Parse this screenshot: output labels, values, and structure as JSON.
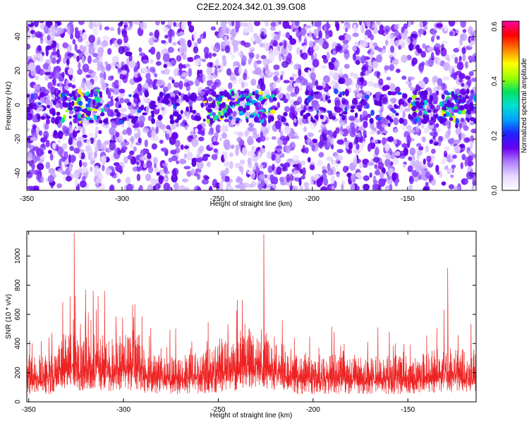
{
  "title": "C2E2.2024.342.01.39.G08",
  "chart_data": [
    {
      "type": "heatmap",
      "xlabel": "Height of straight line (km)",
      "ylabel": "Frequency (Hz)",
      "xlim": [
        -350,
        -114
      ],
      "ylim": [
        -50,
        49
      ],
      "xticks": [
        -350,
        -300,
        -250,
        -200,
        -150
      ],
      "yticks": [
        -40,
        -20,
        0,
        20,
        40
      ],
      "colorbar": {
        "label": "Normalized spectral amplitude",
        "range": [
          0.0,
          0.62
        ],
        "ticks": [
          "0.0",
          "0.2",
          "0.4",
          "0.6"
        ],
        "tick_values": [
          0.0,
          0.2,
          0.4,
          0.6
        ],
        "colormap": [
          "#ffffff",
          "#e6d8ff",
          "#b080ff",
          "#6a00f0",
          "#2020ff",
          "#00a0ff",
          "#00e0d0",
          "#00e060",
          "#a0ff00",
          "#ffff00",
          "#ff8000",
          "#ff0000",
          "#ff00a0"
        ]
      },
      "signal_band_hz": [
        -10,
        8
      ],
      "bright_segments_km": [
        [
          -333,
          -310
        ],
        [
          -258,
          -220
        ],
        [
          -148,
          -140
        ],
        [
          -133,
          -114
        ]
      ],
      "grid": false
    },
    {
      "type": "line",
      "xlabel": "Height of straight line (km)",
      "ylabel": "SNR (10 * v/v)",
      "xlim": [
        -351,
        -114
      ],
      "ylim": [
        0,
        1170
      ],
      "xticks": [
        -350,
        -300,
        -250,
        -200,
        -150
      ],
      "yticks": [
        0,
        200,
        400,
        600,
        800,
        1000
      ],
      "color": "#ee2222",
      "peaks": [
        {
          "x": -326,
          "y": 1160
        },
        {
          "x": -320,
          "y": 770
        },
        {
          "x": -316,
          "y": 760
        },
        {
          "x": -310,
          "y": 760
        },
        {
          "x": -240,
          "y": 700
        },
        {
          "x": -226,
          "y": 1150
        },
        {
          "x": -129,
          "y": 920
        }
      ],
      "baseline_band": [
        100,
        380
      ],
      "grid": false
    }
  ]
}
